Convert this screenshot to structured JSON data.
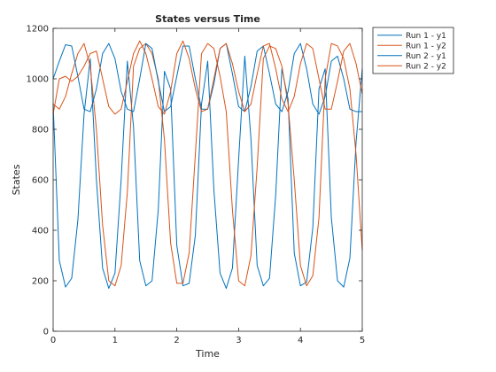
{
  "chart_data": {
    "type": "line",
    "title": "States versus Time",
    "xlabel": "Time",
    "ylabel": "States",
    "xlim": [
      0,
      5
    ],
    "ylim": [
      0,
      1200
    ],
    "xticks": [
      "0",
      "1",
      "2",
      "3",
      "4",
      "5"
    ],
    "yticks": [
      "0",
      "200",
      "400",
      "600",
      "800",
      "1000",
      "1200"
    ],
    "grid": false,
    "legend_position": "outside-top-right",
    "x": [
      0,
      0.1,
      0.2,
      0.3,
      0.4,
      0.5,
      0.6,
      0.7,
      0.8,
      0.9,
      1.0,
      1.1,
      1.2,
      1.3,
      1.4,
      1.5,
      1.6,
      1.7,
      1.8,
      1.9,
      2.0,
      2.1,
      2.2,
      2.3,
      2.4,
      2.5,
      2.6,
      2.7,
      2.8,
      2.9,
      3.0,
      3.1,
      3.2,
      3.3,
      3.4,
      3.5,
      3.6,
      3.7,
      3.8,
      3.9,
      4.0,
      4.1,
      4.2,
      4.3,
      4.4,
      4.5,
      4.6,
      4.7,
      4.8,
      4.9,
      5.0
    ],
    "series": [
      {
        "name": "Run 1 - y1",
        "color": "#0072BD",
        "values": [
          900,
          280,
          175,
          210,
          440,
          860,
          1080,
          600,
          250,
          170,
          230,
          600,
          1070,
          810,
          280,
          180,
          200,
          480,
          1030,
          960,
          340,
          180,
          190,
          380,
          900,
          1070,
          560,
          230,
          170,
          250,
          680,
          1090,
          760,
          260,
          180,
          210,
          540,
          1040,
          920,
          310,
          180,
          195,
          410,
          960,
          1040,
          450,
          200,
          175,
          290,
          750,
          1040
        ]
      },
      {
        "name": "Run 1 - y2",
        "color": "#D95319",
        "values": [
          900,
          880,
          930,
          1020,
          1100,
          1140,
          1050,
          800,
          420,
          200,
          180,
          260,
          550,
          1050,
          1120,
          1140,
          1100,
          1000,
          760,
          350,
          190,
          190,
          310,
          700,
          1100,
          1140,
          1120,
          1010,
          870,
          480,
          200,
          180,
          300,
          650,
          1080,
          1130,
          1120,
          1050,
          900,
          600,
          260,
          180,
          220,
          450,
          1000,
          1140,
          1130,
          1080,
          960,
          700,
          320
        ]
      },
      {
        "name": "Run 2 - y1",
        "color": "#0072BD",
        "values": [
          1000,
          1070,
          1135,
          1130,
          1010,
          880,
          870,
          960,
          1100,
          1140,
          1080,
          950,
          880,
          870,
          1000,
          1140,
          1120,
          990,
          870,
          890,
          1010,
          1130,
          1130,
          1000,
          880,
          880,
          980,
          1120,
          1140,
          1020,
          890,
          870,
          970,
          1110,
          1130,
          1020,
          900,
          870,
          950,
          1100,
          1140,
          1040,
          900,
          860,
          930,
          1070,
          1090,
          1000,
          880,
          870,
          870
        ]
      },
      {
        "name": "Run 2 - y2",
        "color": "#D95319",
        "values": [
          860,
          1000,
          1010,
          990,
          1010,
          1050,
          1100,
          1110,
          1000,
          890,
          860,
          880,
          990,
          1100,
          1150,
          1100,
          1000,
          890,
          860,
          950,
          1100,
          1150,
          1080,
          960,
          870,
          880,
          1000,
          1120,
          1140,
          1060,
          950,
          870,
          900,
          1020,
          1130,
          1140,
          1040,
          920,
          870,
          930,
          1060,
          1140,
          1120,
          1000,
          880,
          880,
          990,
          1110,
          1140,
          1060,
          940
        ]
      }
    ]
  }
}
